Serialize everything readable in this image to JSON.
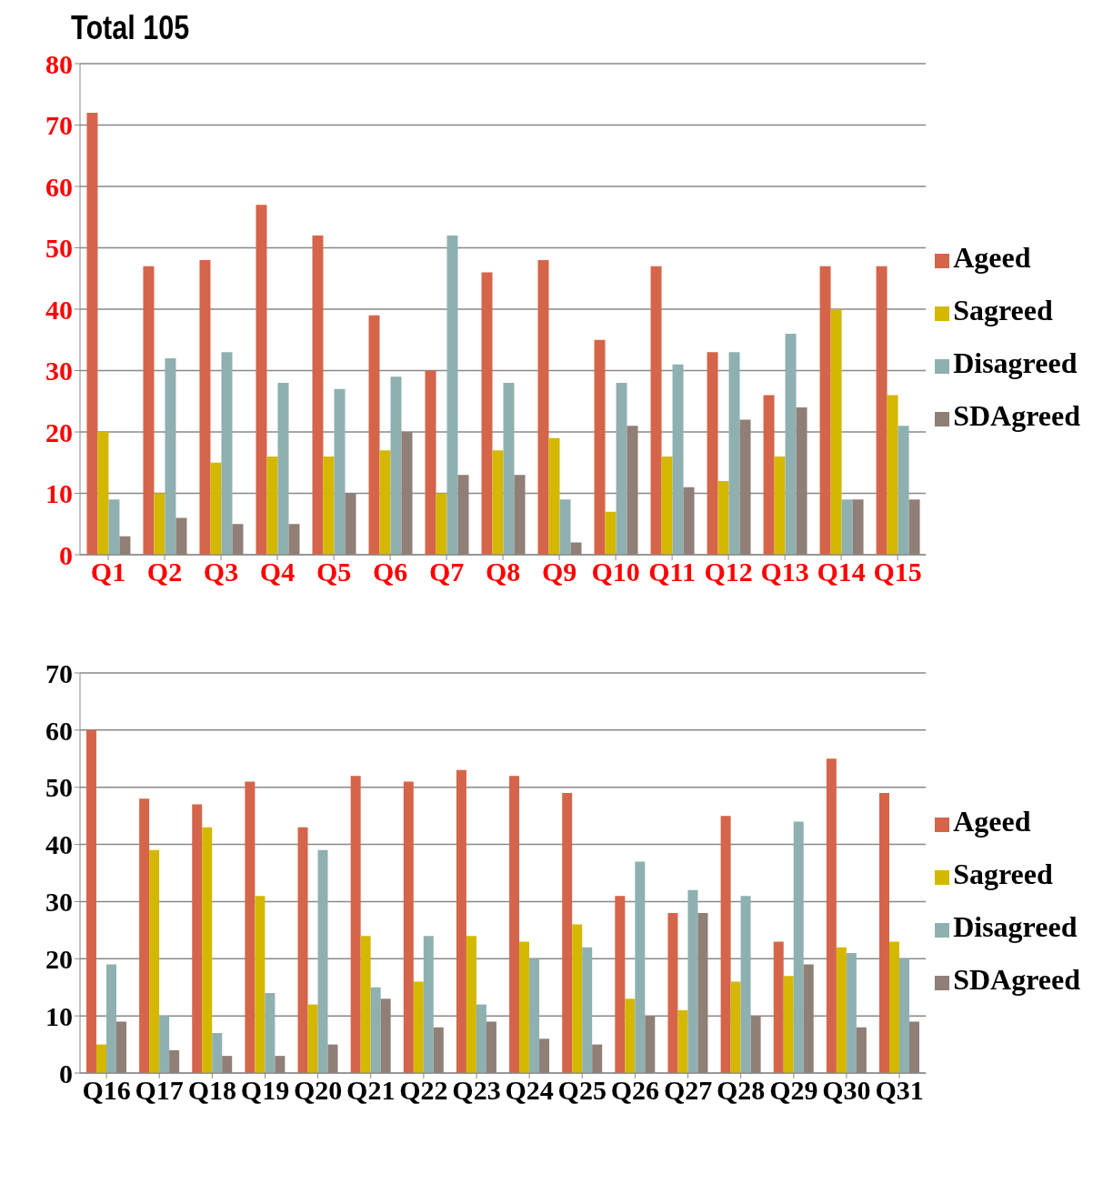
{
  "chart_data": [
    {
      "type": "bar",
      "title": "Total 105",
      "categories": [
        "Q1",
        "Q2",
        "Q3",
        "Q4",
        "Q5",
        "Q6",
        "Q7",
        "Q8",
        "Q9",
        "Q10",
        "Q11",
        "Q12",
        "Q13",
        "Q14",
        "Q15"
      ],
      "series": [
        {
          "name": "Ageed",
          "color": "#d5654a",
          "values": [
            72,
            47,
            48,
            57,
            52,
            39,
            30,
            46,
            48,
            35,
            47,
            33,
            26,
            47,
            47
          ]
        },
        {
          "name": "Sagreed",
          "color": "#d4b800",
          "values": [
            20,
            10,
            15,
            16,
            16,
            17,
            10,
            17,
            19,
            7,
            16,
            12,
            16,
            40,
            26
          ]
        },
        {
          "name": "Disagreed",
          "color": "#8fb0b0",
          "values": [
            9,
            32,
            33,
            28,
            27,
            29,
            52,
            28,
            9,
            28,
            31,
            33,
            36,
            9,
            21
          ]
        },
        {
          "name": "SDAgreed",
          "color": "#8f7f77",
          "values": [
            3,
            6,
            5,
            5,
            10,
            20,
            13,
            13,
            2,
            21,
            11,
            22,
            24,
            9,
            9
          ]
        }
      ],
      "ylim": [
        0,
        80
      ],
      "yticks": [
        0,
        10,
        20,
        30,
        40,
        50,
        60,
        70,
        80
      ],
      "grid": "y",
      "legend": "right"
    },
    {
      "type": "bar",
      "categories": [
        "Q16",
        "Q17",
        "Q18",
        "Q19",
        "Q20",
        "Q21",
        "Q22",
        "Q23",
        "Q24",
        "Q25",
        "Q26",
        "Q27",
        "Q28",
        "Q29",
        "Q30",
        "Q31"
      ],
      "series": [
        {
          "name": "Ageed",
          "color": "#d5654a",
          "values": [
            60,
            48,
            47,
            51,
            43,
            52,
            51,
            53,
            52,
            49,
            31,
            28,
            45,
            23,
            55,
            49
          ]
        },
        {
          "name": "Sagreed",
          "color": "#d4b800",
          "values": [
            5,
            39,
            43,
            31,
            12,
            24,
            16,
            24,
            23,
            26,
            13,
            11,
            16,
            17,
            22,
            23
          ]
        },
        {
          "name": "Disagreed",
          "color": "#8fb0b0",
          "values": [
            19,
            10,
            7,
            14,
            39,
            15,
            24,
            12,
            20,
            22,
            37,
            32,
            31,
            44,
            21,
            20
          ]
        },
        {
          "name": "SDAgreed",
          "color": "#8f7f77",
          "values": [
            9,
            4,
            3,
            3,
            5,
            13,
            8,
            9,
            6,
            5,
            10,
            28,
            10,
            19,
            8,
            9
          ]
        }
      ],
      "ylim": [
        0,
        70
      ],
      "yticks": [
        0,
        10,
        20,
        30,
        40,
        50,
        60,
        70
      ],
      "grid": "y",
      "legend": "right"
    }
  ]
}
